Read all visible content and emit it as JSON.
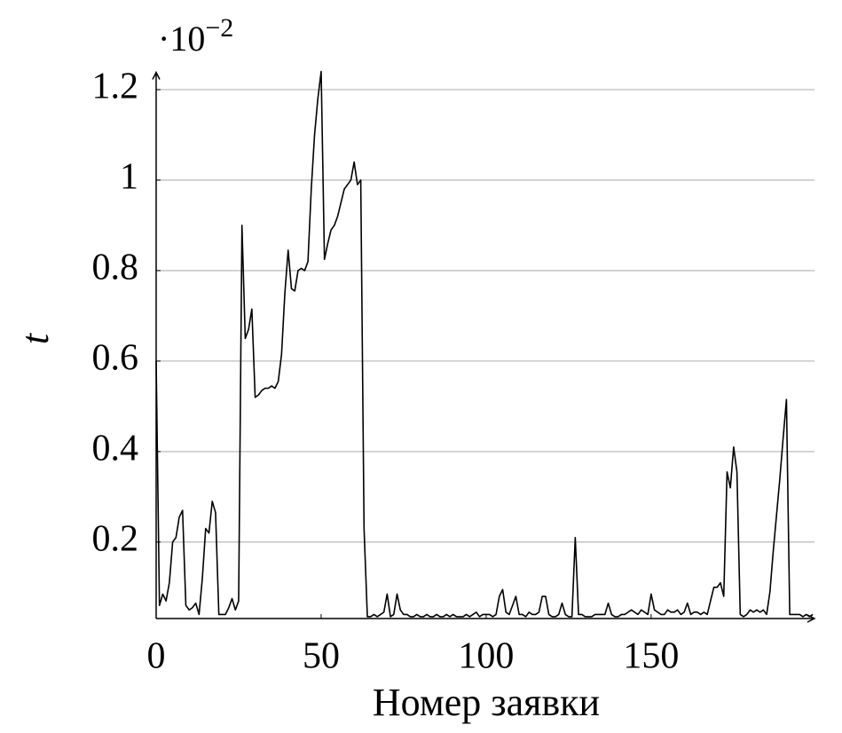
{
  "chart_data": {
    "type": "line",
    "scale_label": "·10",
    "scale_exponent": "−2",
    "xlabel": "Номер заявки",
    "ylabel": "t",
    "x": [
      0,
      1,
      2,
      3,
      4,
      5,
      6,
      7,
      8,
      9,
      10,
      11,
      12,
      13,
      14,
      15,
      16,
      17,
      18,
      19,
      20,
      21,
      22,
      23,
      24,
      25,
      26,
      27,
      28,
      29,
      30,
      31,
      32,
      33,
      34,
      35,
      36,
      37,
      38,
      39,
      40,
      41,
      42,
      43,
      44,
      45,
      46,
      47,
      48,
      49,
      50,
      51,
      52,
      53,
      54,
      55,
      56,
      57,
      58,
      59,
      60,
      61,
      62,
      63,
      64,
      65,
      66,
      67,
      68,
      69,
      70,
      71,
      72,
      73,
      74,
      75,
      76,
      77,
      78,
      79,
      80,
      81,
      82,
      83,
      84,
      85,
      86,
      87,
      88,
      89,
      90,
      91,
      92,
      93,
      94,
      95,
      96,
      97,
      98,
      99,
      100,
      101,
      102,
      103,
      104,
      105,
      106,
      107,
      108,
      109,
      110,
      111,
      112,
      113,
      114,
      115,
      116,
      117,
      118,
      119,
      120,
      121,
      122,
      123,
      124,
      125,
      126,
      127,
      128,
      129,
      130,
      131,
      132,
      133,
      134,
      135,
      136,
      137,
      138,
      139,
      140,
      141,
      142,
      143,
      144,
      145,
      146,
      147,
      148,
      149,
      150,
      151,
      152,
      153,
      154,
      155,
      156,
      157,
      158,
      159,
      160,
      161,
      162,
      163,
      164,
      165,
      166,
      167,
      168,
      169,
      170,
      171,
      172,
      173,
      174,
      175,
      176,
      177,
      178,
      179,
      180,
      181,
      182,
      183,
      184,
      185,
      186,
      187,
      188,
      189,
      190,
      191,
      192,
      193,
      194,
      195,
      196,
      197,
      198,
      199
    ],
    "series": [
      {
        "color": "#000000",
        "values": [
          0.6,
          0.06,
          0.085,
          0.07,
          0.11,
          0.2,
          0.21,
          0.255,
          0.27,
          0.06,
          0.05,
          0.055,
          0.065,
          0.04,
          0.12,
          0.23,
          0.22,
          0.29,
          0.265,
          0.04,
          0.04,
          0.04,
          0.055,
          0.075,
          0.05,
          0.07,
          0.9,
          0.65,
          0.67,
          0.715,
          0.52,
          0.525,
          0.535,
          0.54,
          0.54,
          0.545,
          0.54,
          0.555,
          0.615,
          0.75,
          0.845,
          0.76,
          0.755,
          0.8,
          0.805,
          0.8,
          0.82,
          0.98,
          1.1,
          1.18,
          1.24,
          0.825,
          0.86,
          0.89,
          0.9,
          0.92,
          0.95,
          0.98,
          0.99,
          1.0,
          1.04,
          0.99,
          1.0,
          0.23,
          0.035,
          0.035,
          0.04,
          0.035,
          0.04,
          0.045,
          0.085,
          0.035,
          0.04,
          0.085,
          0.05,
          0.04,
          0.04,
          0.035,
          0.035,
          0.04,
          0.035,
          0.035,
          0.04,
          0.035,
          0.035,
          0.04,
          0.035,
          0.035,
          0.04,
          0.035,
          0.04,
          0.035,
          0.035,
          0.035,
          0.04,
          0.035,
          0.04,
          0.045,
          0.035,
          0.04,
          0.04,
          0.04,
          0.035,
          0.04,
          0.08,
          0.095,
          0.045,
          0.04,
          0.06,
          0.08,
          0.04,
          0.04,
          0.035,
          0.045,
          0.04,
          0.04,
          0.045,
          0.08,
          0.08,
          0.04,
          0.035,
          0.035,
          0.04,
          0.065,
          0.04,
          0.035,
          0.035,
          0.21,
          0.04,
          0.04,
          0.035,
          0.035,
          0.035,
          0.04,
          0.04,
          0.04,
          0.04,
          0.065,
          0.04,
          0.035,
          0.035,
          0.04,
          0.04,
          0.045,
          0.05,
          0.045,
          0.04,
          0.05,
          0.045,
          0.04,
          0.085,
          0.05,
          0.045,
          0.04,
          0.04,
          0.05,
          0.045,
          0.045,
          0.05,
          0.04,
          0.045,
          0.065,
          0.04,
          0.045,
          0.045,
          0.04,
          0.045,
          0.04,
          0.07,
          0.1,
          0.1,
          0.11,
          0.08,
          0.355,
          0.32,
          0.41,
          0.355,
          0.04,
          0.035,
          0.04,
          0.05,
          0.045,
          0.05,
          0.045,
          0.05,
          0.04,
          0.09,
          0.18,
          0.26,
          0.34,
          0.43,
          0.515,
          0.04,
          0.04,
          0.04,
          0.04,
          0.035,
          0.04,
          0.035,
          0.04
        ]
      }
    ],
    "xlim": [
      0,
      199.5
    ],
    "ylim": [
      0.031,
      1.25
    ],
    "xticks": [
      0,
      50,
      100,
      150
    ],
    "yticks": [
      0.2,
      0.4,
      0.6,
      0.8,
      1,
      1.2
    ],
    "grid": true
  }
}
